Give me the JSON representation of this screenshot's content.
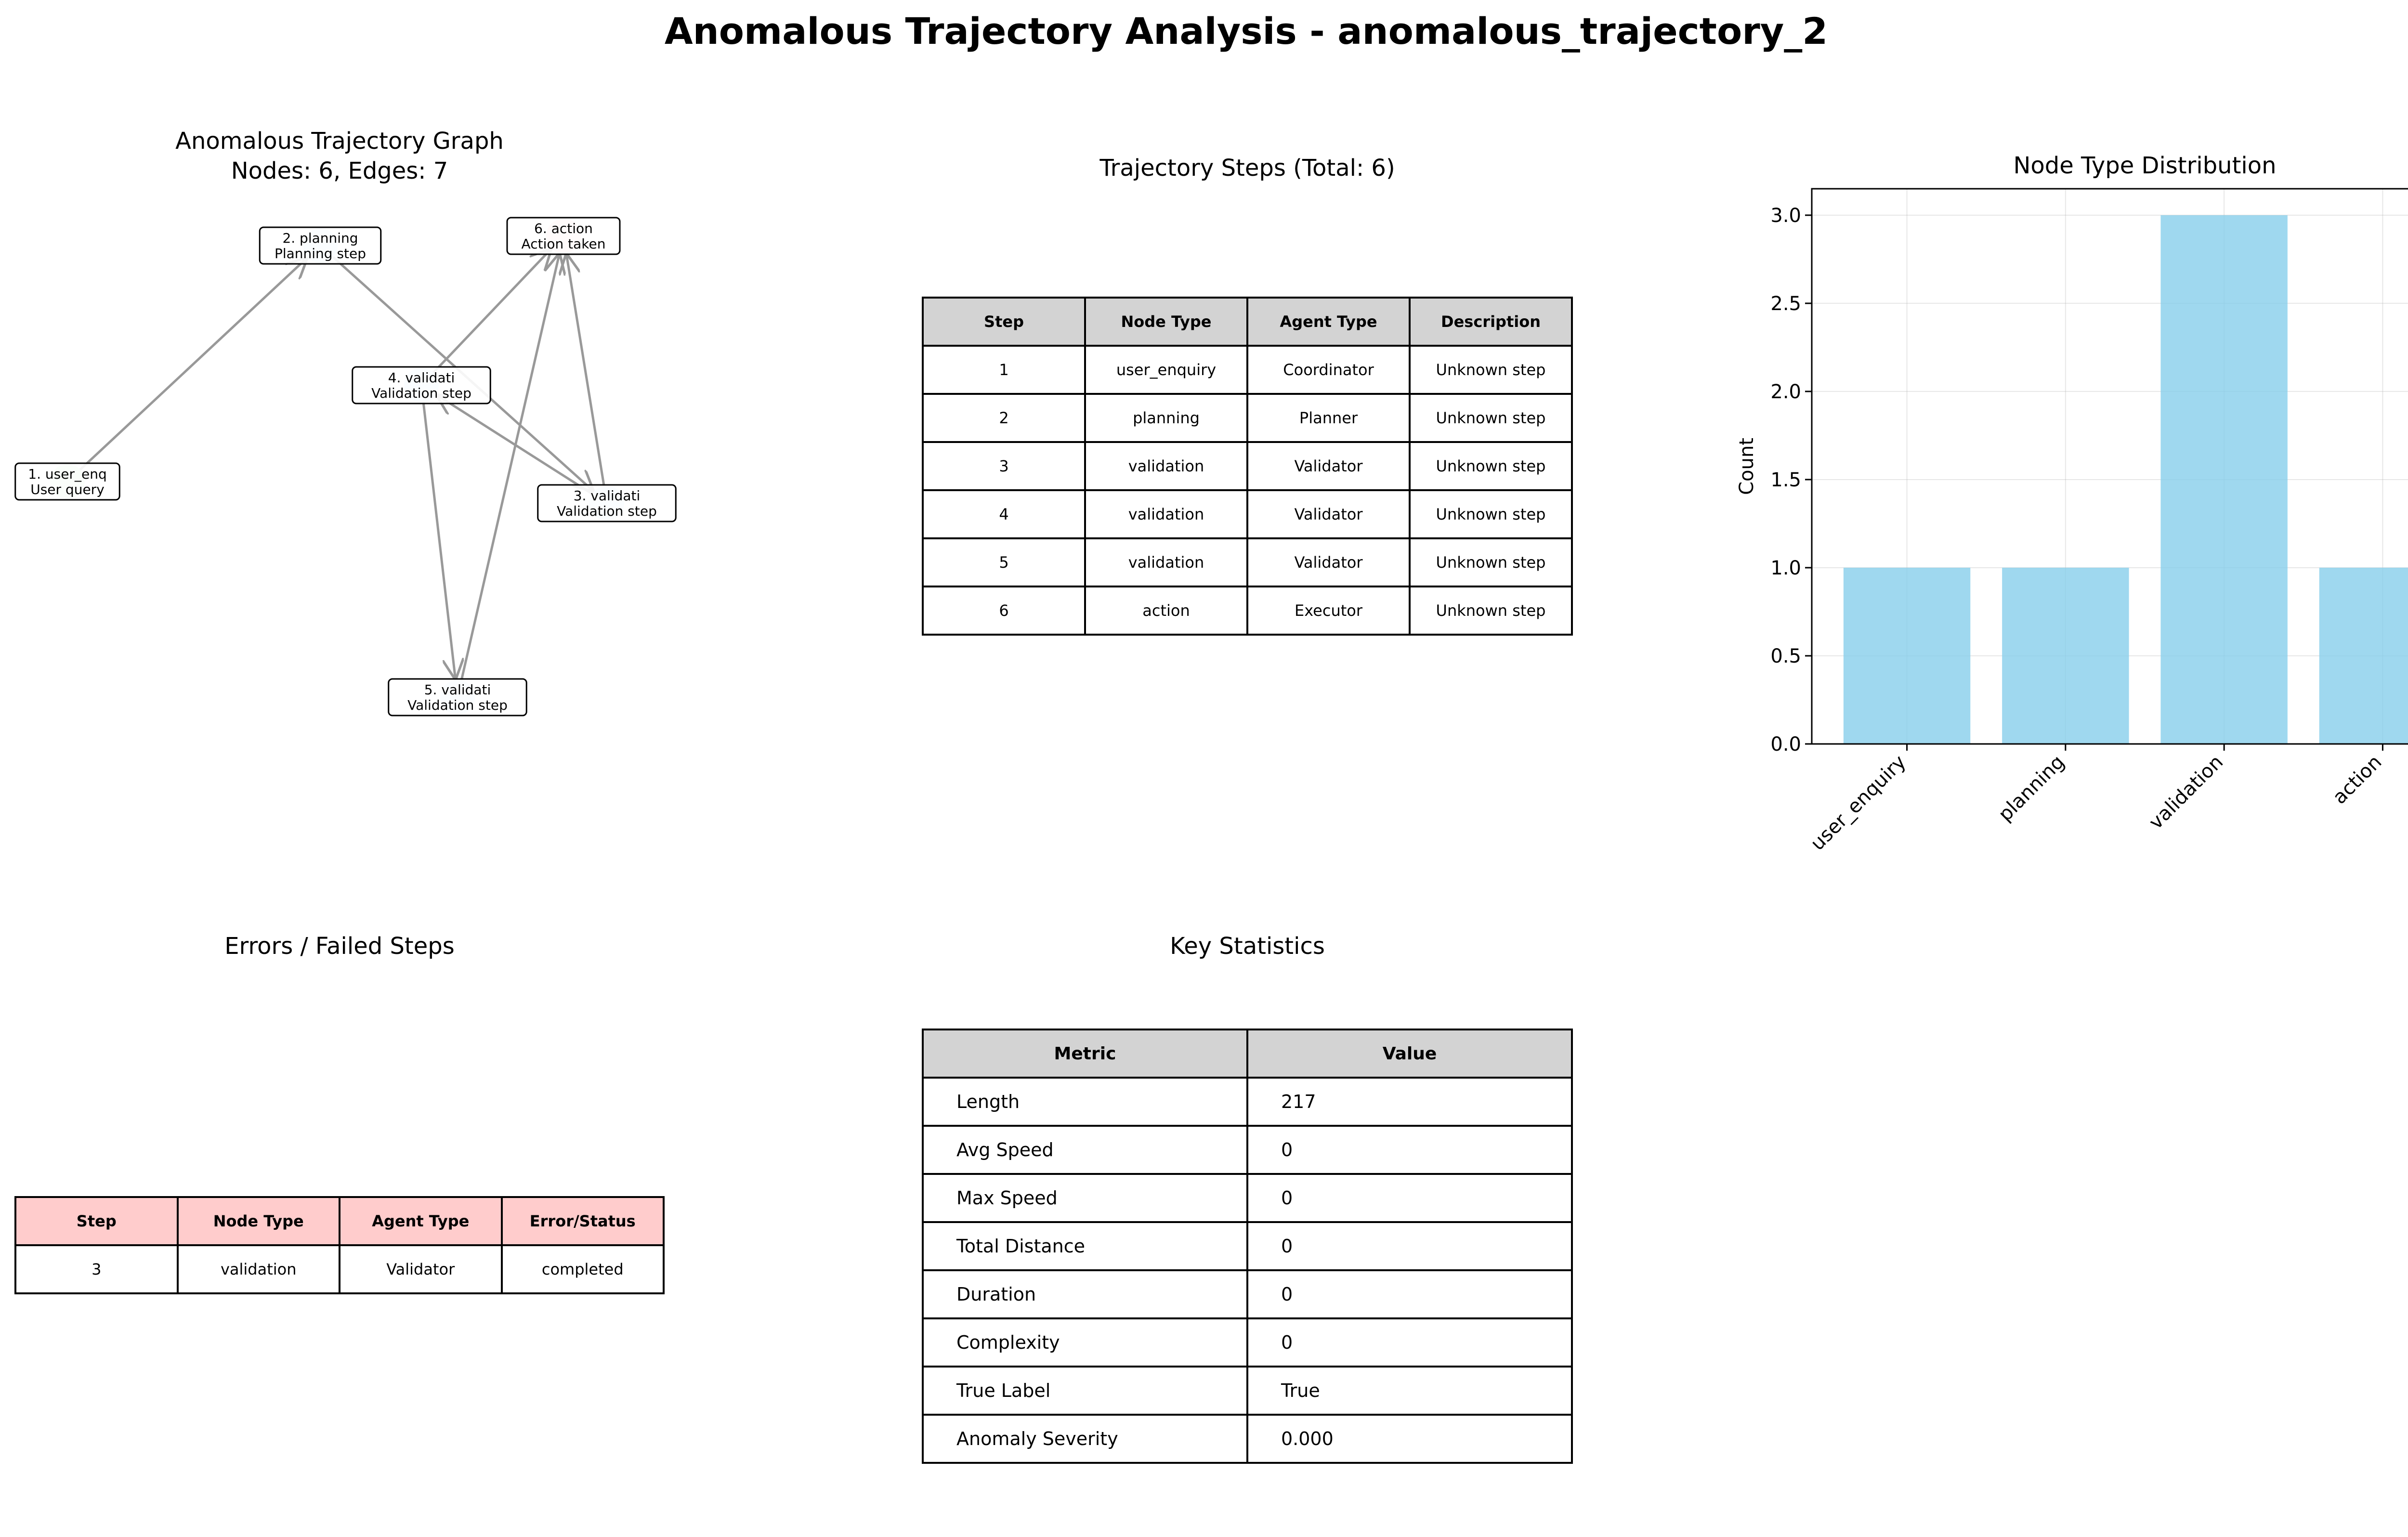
{
  "title": "Anomalous Trajectory Analysis - anomalous_trajectory_2",
  "graph_panel": {
    "title_line1": "Anomalous Trajectory Graph",
    "title_line2": "Nodes: 6, Edges: 7",
    "nodes": [
      {
        "id": 1,
        "label1": "1. user_enq",
        "label2": "User query",
        "color": "#c8f0c8"
      },
      {
        "id": 2,
        "label1": "2. planning",
        "label2": "Planning step",
        "color": "#c8e6ff"
      },
      {
        "id": 3,
        "label1": "3. validati",
        "label2": "Validation step",
        "color": "#c8e6ff"
      },
      {
        "id": 4,
        "label1": "4. validati",
        "label2": "Validation step",
        "color": "#c8e6ff"
      },
      {
        "id": 5,
        "label1": "5. validati",
        "label2": "Validation step",
        "color": "#c8e6ff"
      },
      {
        "id": 6,
        "label1": "6. action",
        "label2": "Action taken",
        "color": "#ffc8c8"
      }
    ],
    "edges": [
      [
        1,
        2
      ],
      [
        2,
        3
      ],
      [
        3,
        4
      ],
      [
        4,
        5
      ],
      [
        5,
        6
      ],
      [
        4,
        6
      ],
      [
        3,
        6
      ]
    ],
    "edge_color": "#999999"
  },
  "steps_panel": {
    "title": "Trajectory Steps (Total: 6)",
    "headers": [
      "Step",
      "Node Type",
      "Agent Type",
      "Description"
    ],
    "rows": [
      [
        "1",
        "user_enquiry",
        "Coordinator",
        "Unknown step"
      ],
      [
        "2",
        "planning",
        "Planner",
        "Unknown step"
      ],
      [
        "3",
        "validation",
        "Validator",
        "Unknown step"
      ],
      [
        "4",
        "validation",
        "Validator",
        "Unknown step"
      ],
      [
        "5",
        "validation",
        "Validator",
        "Unknown step"
      ],
      [
        "6",
        "action",
        "Executor",
        "Unknown step"
      ]
    ]
  },
  "errors_panel": {
    "title": "Errors / Failed Steps",
    "headers": [
      "Step",
      "Node Type",
      "Agent Type",
      "Error/Status"
    ],
    "rows": [
      [
        "3",
        "validation",
        "Validator",
        "completed"
      ]
    ]
  },
  "stats_panel": {
    "title": "Key Statistics",
    "headers": [
      "Metric",
      "Value"
    ],
    "rows": [
      [
        "Length",
        "217"
      ],
      [
        "Avg Speed",
        "0"
      ],
      [
        "Max Speed",
        "0"
      ],
      [
        "Total Distance",
        "0"
      ],
      [
        "Duration",
        "0"
      ],
      [
        "Complexity",
        "0"
      ],
      [
        "True Label",
        "True"
      ],
      [
        "Anomaly Severity",
        "0.000"
      ]
    ]
  },
  "chart_data": {
    "type": "bar",
    "title": "Node Type Distribution",
    "xlabel": "",
    "ylabel": "Count",
    "categories": [
      "user_enquiry",
      "planning",
      "validation",
      "action"
    ],
    "values": [
      1,
      1,
      3,
      1
    ],
    "ylim": [
      0,
      3.15
    ],
    "yticks": [
      "0.0",
      "0.5",
      "1.0",
      "1.5",
      "2.0",
      "2.5",
      "3.0"
    ],
    "bar_color": "#87ceeb",
    "grid": true
  }
}
